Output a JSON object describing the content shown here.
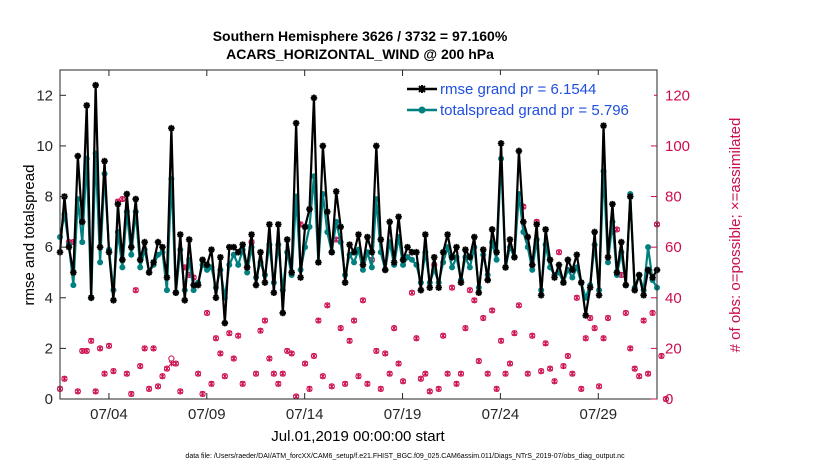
{
  "chart_data": {
    "type": "line",
    "title": "Southern Hemisphere 3626 / 3732 = 97.160%",
    "subtitle": "ACARS_HORIZONTAL_WIND @ 200 hPa",
    "xlabel": "Jul.01,2019 00:00:00 start",
    "ylabel": "rmse and totalspread",
    "ylabel_right": "# of obs: o=possible; ×=assimilated",
    "footnote": "data file: /Users/raeder/DAI/ATM_forcXX/CAM6_setup/f.e21.FHIST_BGC.f09_025.CAM6assim.011/Diags_NTrS_2019-07/obs_diag_output.nc",
    "x_unit": "days since Jul.01,2019",
    "xlim": [
      0.5,
      31.0
    ],
    "ylim": [
      0,
      13
    ],
    "ylim_right": [
      0,
      130
    ],
    "x_ticks": [
      3,
      8,
      13,
      18,
      23,
      28
    ],
    "x_tick_labels": [
      "07/04",
      "07/09",
      "07/14",
      "07/19",
      "07/24",
      "07/29"
    ],
    "y_ticks": [
      0,
      2,
      4,
      6,
      8,
      10,
      12
    ],
    "y_ticks_right": [
      0,
      20,
      40,
      60,
      80,
      100,
      120
    ],
    "legend_position": "top-right",
    "colors": {
      "rmse": "#000000",
      "spread": "#008080",
      "obs": "#cc0d4f"
    },
    "series": [
      {
        "name": "rmse grand pr = 6.1544",
        "axis": "left",
        "marker": "star",
        "values": [
          5.8,
          8.0,
          6.0,
          5.0,
          9.6,
          7.0,
          11.6,
          4.0,
          12.4,
          6.0,
          9.4,
          5.8,
          3.9,
          7.7,
          5.5,
          8.1,
          6.0,
          7.9,
          5.5,
          6.2,
          5.0,
          5.4,
          6.2,
          6.0,
          4.8,
          10.7,
          4.2,
          6.5,
          3.9,
          6.3,
          4.5,
          4.5,
          5.5,
          5.3,
          5.9,
          4.0,
          5.6,
          3.0,
          6.0,
          6.0,
          5.8,
          6.1,
          5.2,
          6.5,
          4.5,
          5.8,
          4.6,
          6.9,
          4.2,
          6.9,
          3.4,
          6.3,
          5.0,
          10.9,
          4.8,
          6.8,
          7.5,
          11.9,
          5.4,
          10.0,
          7.4,
          5.8,
          8.2,
          6.8,
          4.6,
          6.1,
          5.8,
          6.5,
          5.3,
          6.4,
          5.8,
          10.0,
          6.3,
          5.1,
          7.0,
          5.4,
          7.2,
          5.5,
          6.0,
          5.8,
          5.8,
          4.3,
          6.5,
          4.4,
          5.6,
          4.4,
          5.8,
          6.5,
          5.6,
          6.0,
          4.6,
          5.9,
          5.6,
          6.4,
          4.2,
          5.9,
          4.7,
          6.7,
          5.8,
          10.1,
          5.2,
          6.3,
          5.6,
          9.8,
          7.0,
          6.4,
          5.3,
          6.9,
          4.1,
          6.7,
          5.5,
          4.8,
          5.3,
          4.6,
          5.5,
          5.1,
          5.7,
          4.6,
          3.3,
          4.4,
          6.6,
          4.1,
          10.8,
          5.6,
          7.7,
          5.0,
          6.2,
          4.5,
          8.0,
          4.3,
          4.9,
          4.1,
          5.1,
          4.8,
          5.1
        ]
      },
      {
        "name": "totalspread grand pr = 5.796",
        "axis": "left",
        "marker": "circle",
        "values": [
          6.4,
          7.3,
          6.1,
          4.5,
          7.9,
          6.2,
          9.5,
          4.0,
          9.7,
          5.4,
          8.9,
          5.9,
          4.3,
          6.6,
          5.2,
          7.4,
          5.7,
          7.4,
          5.2,
          5.9,
          5.0,
          5.3,
          5.7,
          5.8,
          4.3,
          8.7,
          4.2,
          5.9,
          4.3,
          5.5,
          4.3,
          4.6,
          5.3,
          5.1,
          5.2,
          4.4,
          5.1,
          4.0,
          5.3,
          5.7,
          5.3,
          5.9,
          5.0,
          6.0,
          4.8,
          5.4,
          4.9,
          6.1,
          4.6,
          6.1,
          4.3,
          5.8,
          4.9,
          8.0,
          5.1,
          6.0,
          6.8,
          8.8,
          5.4,
          8.1,
          6.6,
          5.8,
          7.0,
          6.2,
          4.9,
          5.7,
          5.4,
          5.9,
          5.1,
          5.8,
          5.2,
          7.9,
          5.8,
          5.1,
          6.2,
          5.3,
          6.4,
          5.3,
          5.6,
          5.5,
          5.3,
          4.6,
          5.8,
          4.6,
          5.1,
          4.6,
          5.4,
          6.0,
          5.2,
          5.6,
          4.7,
          5.6,
          5.2,
          6.0,
          4.4,
          5.7,
          4.9,
          6.2,
          5.5,
          9.5,
          5.2,
          6.0,
          5.6,
          8.1,
          6.6,
          6.0,
          5.1,
          6.3,
          4.3,
          6.1,
          5.2,
          4.9,
          5.0,
          4.6,
          5.1,
          4.8,
          5.2,
          4.6,
          4.0,
          4.5,
          6.1,
          4.3,
          9.0,
          5.4,
          7.0,
          4.9,
          5.8,
          4.5,
          8.1,
          4.4,
          4.9,
          4.3,
          6.0,
          4.7,
          4.4
        ]
      },
      {
        "name": "# of obs possible",
        "axis": "right",
        "marker": "o",
        "values": [
          4,
          8,
          62,
          62,
          3,
          19,
          19,
          23,
          3,
          20,
          10,
          21,
          11,
          78,
          79,
          10,
          2,
          43,
          13,
          20,
          4,
          20,
          5,
          9,
          12,
          16,
          14,
          3,
          52,
          49,
          48,
          10,
          2,
          34,
          6,
          24,
          18,
          9,
          26,
          16,
          25,
          6,
          52,
          62,
          10,
          27,
          31,
          16,
          10,
          6,
          10,
          19,
          18,
          1,
          69,
          14,
          4,
          17,
          31,
          9,
          37,
          5,
          63,
          28,
          6,
          23,
          31,
          9,
          39,
          6,
          55,
          19,
          4,
          18,
          10,
          28,
          14,
          7,
          56,
          42,
          24,
          8,
          10,
          3,
          53,
          4,
          25,
          10,
          44,
          6,
          10,
          28,
          43,
          39,
          15,
          32,
          10,
          35,
          4,
          23,
          10,
          14,
          26,
          37,
          76,
          10,
          25,
          70,
          11,
          22,
          12,
          7,
          58,
          13,
          17,
          10,
          40,
          4,
          24,
          32,
          28,
          5,
          24,
          32,
          66,
          67,
          49,
          34,
          20,
          12,
          9,
          31,
          10,
          34,
          69,
          17,
          0
        ]
      },
      {
        "name": "# of obs assimilated",
        "axis": "right",
        "marker": "x",
        "values": [
          4,
          8,
          62,
          62,
          3,
          19,
          19,
          23,
          3,
          20,
          10,
          21,
          11,
          78,
          79,
          10,
          2,
          43,
          13,
          20,
          4,
          20,
          5,
          9,
          12,
          14,
          14,
          3,
          52,
          49,
          48,
          10,
          2,
          34,
          6,
          24,
          18,
          9,
          26,
          16,
          25,
          6,
          52,
          62,
          10,
          27,
          31,
          16,
          10,
          6,
          10,
          19,
          18,
          1,
          69,
          14,
          4,
          17,
          31,
          9,
          37,
          5,
          63,
          28,
          6,
          23,
          31,
          9,
          39,
          6,
          55,
          19,
          4,
          18,
          10,
          28,
          14,
          7,
          56,
          42,
          24,
          8,
          10,
          3,
          53,
          4,
          25,
          10,
          44,
          6,
          10,
          28,
          43,
          39,
          15,
          32,
          10,
          35,
          4,
          23,
          10,
          14,
          26,
          37,
          76,
          10,
          25,
          70,
          11,
          22,
          12,
          7,
          58,
          13,
          17,
          10,
          40,
          4,
          24,
          32,
          28,
          5,
          24,
          32,
          66,
          67,
          49,
          34,
          20,
          12,
          9,
          31,
          10,
          34,
          69,
          17,
          0
        ]
      }
    ]
  }
}
